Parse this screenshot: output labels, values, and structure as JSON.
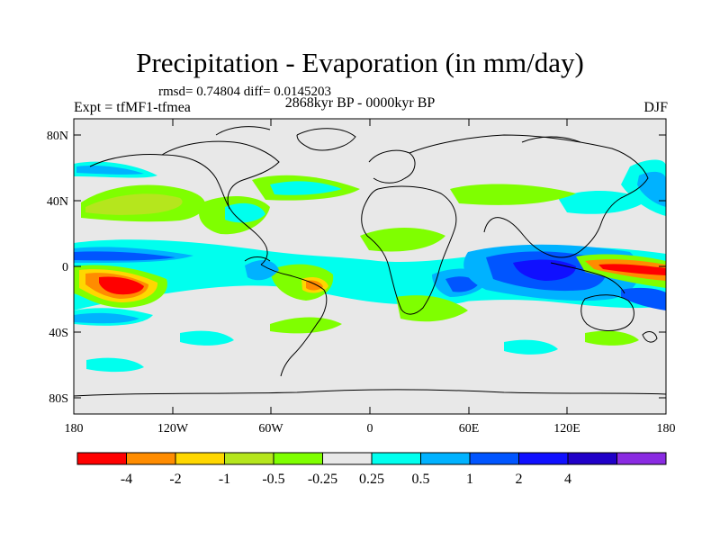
{
  "title": "Precipitation - Evaporation (in mm/day)",
  "stats": "rmsd= 0.74804 diff= 0.0145203",
  "left_label": "Expt = tfMF1-tfmea",
  "center_label": "2868kyr BP - 0000kyr BP",
  "right_label": "DJF",
  "lat_labels": [
    "80N",
    "40N",
    "0",
    "40S",
    "80S"
  ],
  "lon_labels": [
    "180",
    "120W",
    "60W",
    "0",
    "60E",
    "120E",
    "180"
  ],
  "colorbar": {
    "colors": [
      "#ff0000",
      "#ff8c00",
      "#ffd700",
      "#b5e61d",
      "#7fff00",
      "#e8e8e8",
      "#00ffee",
      "#00b2ff",
      "#0055ff",
      "#1010ff",
      "#2000c8",
      "#8a2be2"
    ],
    "labels": [
      "-4",
      "-2",
      "-1",
      "-0.5",
      "-0.25",
      "0.25",
      "0.5",
      "1",
      "2",
      "4"
    ]
  }
}
